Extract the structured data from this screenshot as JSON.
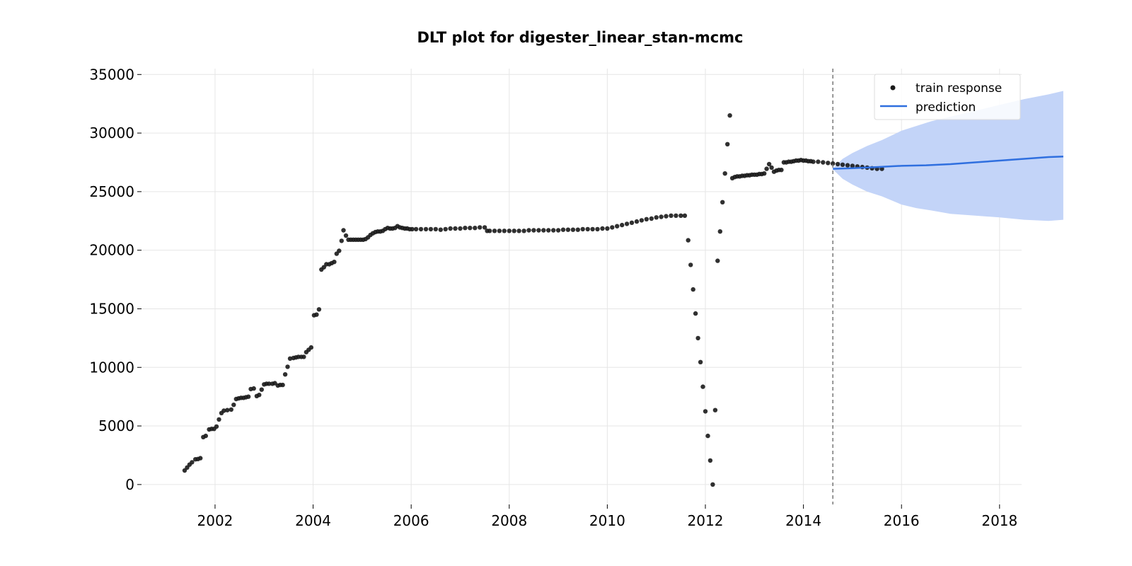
{
  "chart_data": {
    "type": "scatter",
    "title": "DLT plot for digester_linear_stan-mcmc",
    "xlabel": "",
    "ylabel": "",
    "xlim": [
      2000.5,
      2018.45
    ],
    "ylim": [
      -1700,
      35500
    ],
    "x_ticks": [
      2002,
      2004,
      2006,
      2008,
      2010,
      2012,
      2014,
      2016,
      2018
    ],
    "x_tick_labels": [
      "2002",
      "2004",
      "2006",
      "2008",
      "2010",
      "2012",
      "2014",
      "2016",
      "2018"
    ],
    "y_ticks": [
      0,
      5000,
      10000,
      15000,
      20000,
      25000,
      30000,
      35000
    ],
    "y_tick_labels": [
      "0",
      "5000",
      "10000",
      "15000",
      "20000",
      "25000",
      "30000",
      "35000"
    ],
    "grid": true,
    "legend_position": "top-right",
    "split_x": 2014.6,
    "colors": {
      "train": "#1a1a1a",
      "prediction": "#2f6fdf",
      "band": "#c3d4f8",
      "split": "#777777"
    },
    "series": [
      {
        "name": "train response",
        "kind": "scatter",
        "points": [
          [
            2001.38,
            1200
          ],
          [
            2001.43,
            1450
          ],
          [
            2001.48,
            1700
          ],
          [
            2001.53,
            1900
          ],
          [
            2001.6,
            2150
          ],
          [
            2001.65,
            2180
          ],
          [
            2001.7,
            2250
          ],
          [
            2001.76,
            4050
          ],
          [
            2001.81,
            4150
          ],
          [
            2001.88,
            4700
          ],
          [
            2001.93,
            4750
          ],
          [
            2001.98,
            4750
          ],
          [
            2002.03,
            4950
          ],
          [
            2002.08,
            5550
          ],
          [
            2002.13,
            6100
          ],
          [
            2002.18,
            6300
          ],
          [
            2002.25,
            6350
          ],
          [
            2002.33,
            6400
          ],
          [
            2002.38,
            6800
          ],
          [
            2002.43,
            7300
          ],
          [
            2002.48,
            7350
          ],
          [
            2002.53,
            7400
          ],
          [
            2002.58,
            7400
          ],
          [
            2002.63,
            7450
          ],
          [
            2002.68,
            7500
          ],
          [
            2002.73,
            8150
          ],
          [
            2002.79,
            8200
          ],
          [
            2002.85,
            7550
          ],
          [
            2002.9,
            7650
          ],
          [
            2002.95,
            8100
          ],
          [
            2003.0,
            8550
          ],
          [
            2003.05,
            8600
          ],
          [
            2003.1,
            8600
          ],
          [
            2003.17,
            8600
          ],
          [
            2003.22,
            8650
          ],
          [
            2003.28,
            8450
          ],
          [
            2003.33,
            8500
          ],
          [
            2003.38,
            8500
          ],
          [
            2003.43,
            9400
          ],
          [
            2003.48,
            10050
          ],
          [
            2003.53,
            10750
          ],
          [
            2003.6,
            10800
          ],
          [
            2003.65,
            10850
          ],
          [
            2003.7,
            10900
          ],
          [
            2003.76,
            10900
          ],
          [
            2003.81,
            10900
          ],
          [
            2003.86,
            11300
          ],
          [
            2003.91,
            11500
          ],
          [
            2003.96,
            11700
          ],
          [
            2004.02,
            14450
          ],
          [
            2004.07,
            14500
          ],
          [
            2004.12,
            14950
          ],
          [
            2004.17,
            18350
          ],
          [
            2004.22,
            18550
          ],
          [
            2004.27,
            18800
          ],
          [
            2004.33,
            18800
          ],
          [
            2004.38,
            18900
          ],
          [
            2004.43,
            19000
          ],
          [
            2004.48,
            19700
          ],
          [
            2004.53,
            19950
          ],
          [
            2004.58,
            20800
          ],
          [
            2004.62,
            21700
          ],
          [
            2004.67,
            21250
          ],
          [
            2004.72,
            20900
          ],
          [
            2004.77,
            20900
          ],
          [
            2004.82,
            20900
          ],
          [
            2004.87,
            20900
          ],
          [
            2004.92,
            20900
          ],
          [
            2004.97,
            20900
          ],
          [
            2005.02,
            20900
          ],
          [
            2005.07,
            20950
          ],
          [
            2005.12,
            21100
          ],
          [
            2005.17,
            21300
          ],
          [
            2005.22,
            21450
          ],
          [
            2005.27,
            21550
          ],
          [
            2005.32,
            21600
          ],
          [
            2005.37,
            21600
          ],
          [
            2005.42,
            21650
          ],
          [
            2005.47,
            21800
          ],
          [
            2005.52,
            21900
          ],
          [
            2005.57,
            21850
          ],
          [
            2005.62,
            21850
          ],
          [
            2005.67,
            21900
          ],
          [
            2005.72,
            22050
          ],
          [
            2005.77,
            21950
          ],
          [
            2005.82,
            21900
          ],
          [
            2005.87,
            21850
          ],
          [
            2005.92,
            21850
          ],
          [
            2005.97,
            21800
          ],
          [
            2006.02,
            21800
          ],
          [
            2006.1,
            21800
          ],
          [
            2006.2,
            21800
          ],
          [
            2006.3,
            21800
          ],
          [
            2006.4,
            21800
          ],
          [
            2006.5,
            21800
          ],
          [
            2006.6,
            21750
          ],
          [
            2006.7,
            21800
          ],
          [
            2006.8,
            21850
          ],
          [
            2006.9,
            21850
          ],
          [
            2007.0,
            21850
          ],
          [
            2007.1,
            21900
          ],
          [
            2007.2,
            21900
          ],
          [
            2007.3,
            21900
          ],
          [
            2007.4,
            21950
          ],
          [
            2007.5,
            21950
          ],
          [
            2007.55,
            21650
          ],
          [
            2007.6,
            21650
          ],
          [
            2007.7,
            21650
          ],
          [
            2007.8,
            21650
          ],
          [
            2007.9,
            21650
          ],
          [
            2008.0,
            21650
          ],
          [
            2008.1,
            21650
          ],
          [
            2008.2,
            21650
          ],
          [
            2008.3,
            21650
          ],
          [
            2008.4,
            21700
          ],
          [
            2008.5,
            21700
          ],
          [
            2008.6,
            21700
          ],
          [
            2008.7,
            21700
          ],
          [
            2008.8,
            21700
          ],
          [
            2008.9,
            21700
          ],
          [
            2009.0,
            21700
          ],
          [
            2009.1,
            21750
          ],
          [
            2009.2,
            21750
          ],
          [
            2009.3,
            21750
          ],
          [
            2009.4,
            21750
          ],
          [
            2009.5,
            21800
          ],
          [
            2009.6,
            21800
          ],
          [
            2009.7,
            21800
          ],
          [
            2009.8,
            21800
          ],
          [
            2009.9,
            21850
          ],
          [
            2010.0,
            21850
          ],
          [
            2010.1,
            21950
          ],
          [
            2010.2,
            22050
          ],
          [
            2010.3,
            22150
          ],
          [
            2010.4,
            22250
          ],
          [
            2010.5,
            22350
          ],
          [
            2010.6,
            22450
          ],
          [
            2010.7,
            22550
          ],
          [
            2010.8,
            22650
          ],
          [
            2010.9,
            22700
          ],
          [
            2011.0,
            22800
          ],
          [
            2011.1,
            22850
          ],
          [
            2011.2,
            22900
          ],
          [
            2011.3,
            22950
          ],
          [
            2011.4,
            22950
          ],
          [
            2011.5,
            22950
          ],
          [
            2011.58,
            22950
          ],
          [
            2011.65,
            20850
          ],
          [
            2011.7,
            18750
          ],
          [
            2011.75,
            16650
          ],
          [
            2011.8,
            14600
          ],
          [
            2011.85,
            12500
          ],
          [
            2011.9,
            10450
          ],
          [
            2011.95,
            8350
          ],
          [
            2012.0,
            6250
          ],
          [
            2012.05,
            4150
          ],
          [
            2012.1,
            2050
          ],
          [
            2012.15,
            0
          ],
          [
            2012.2,
            6350
          ],
          [
            2012.25,
            19100
          ],
          [
            2012.3,
            21600
          ],
          [
            2012.35,
            24100
          ],
          [
            2012.4,
            26550
          ],
          [
            2012.45,
            29050
          ],
          [
            2012.5,
            31500
          ],
          [
            2012.55,
            26150
          ],
          [
            2012.6,
            26250
          ],
          [
            2012.65,
            26300
          ],
          [
            2012.7,
            26300
          ],
          [
            2012.75,
            26350
          ],
          [
            2012.8,
            26350
          ],
          [
            2012.85,
            26400
          ],
          [
            2012.9,
            26400
          ],
          [
            2012.95,
            26450
          ],
          [
            2013.0,
            26450
          ],
          [
            2013.05,
            26450
          ],
          [
            2013.1,
            26500
          ],
          [
            2013.15,
            26500
          ],
          [
            2013.2,
            26550
          ],
          [
            2013.25,
            26950
          ],
          [
            2013.3,
            27350
          ],
          [
            2013.35,
            27050
          ],
          [
            2013.4,
            26700
          ],
          [
            2013.45,
            26800
          ],
          [
            2013.5,
            26850
          ],
          [
            2013.55,
            26850
          ],
          [
            2013.6,
            27500
          ],
          [
            2013.65,
            27500
          ],
          [
            2013.7,
            27550
          ],
          [
            2013.75,
            27550
          ],
          [
            2013.8,
            27600
          ],
          [
            2013.85,
            27650
          ],
          [
            2013.9,
            27650
          ],
          [
            2013.95,
            27700
          ],
          [
            2014.0,
            27650
          ],
          [
            2014.05,
            27650
          ],
          [
            2014.1,
            27600
          ],
          [
            2014.15,
            27600
          ],
          [
            2014.2,
            27550
          ],
          [
            2014.3,
            27550
          ],
          [
            2014.4,
            27500
          ],
          [
            2014.5,
            27450
          ],
          [
            2014.6,
            27400
          ],
          [
            2014.7,
            27350
          ],
          [
            2014.8,
            27300
          ],
          [
            2014.9,
            27250
          ],
          [
            2015.0,
            27200
          ],
          [
            2015.1,
            27150
          ],
          [
            2015.2,
            27100
          ],
          [
            2015.3,
            27050
          ],
          [
            2015.4,
            27000
          ],
          [
            2015.5,
            26950
          ],
          [
            2015.6,
            26950
          ]
        ]
      },
      {
        "name": "prediction",
        "kind": "line",
        "points": [
          [
            2014.6,
            26950
          ],
          [
            2015.0,
            27000
          ],
          [
            2015.5,
            27100
          ],
          [
            2016.0,
            27200
          ],
          [
            2016.5,
            27250
          ],
          [
            2017.0,
            27350
          ],
          [
            2017.5,
            27500
          ],
          [
            2018.0,
            27650
          ],
          [
            2018.5,
            27800
          ],
          [
            2019.0,
            27950
          ],
          [
            2019.3,
            28000
          ]
        ],
        "band_upper": [
          [
            2014.6,
            27000
          ],
          [
            2014.8,
            27800
          ],
          [
            2015.0,
            28300
          ],
          [
            2015.3,
            28900
          ],
          [
            2015.6,
            29400
          ],
          [
            2016.0,
            30200
          ],
          [
            2016.3,
            30600
          ],
          [
            2016.6,
            31000
          ],
          [
            2017.0,
            31400
          ],
          [
            2017.5,
            31900
          ],
          [
            2018.0,
            32400
          ],
          [
            2018.5,
            32900
          ],
          [
            2019.0,
            33300
          ],
          [
            2019.3,
            33600
          ]
        ],
        "band_lower": [
          [
            2014.6,
            26900
          ],
          [
            2014.8,
            26100
          ],
          [
            2015.0,
            25600
          ],
          [
            2015.3,
            25000
          ],
          [
            2015.6,
            24600
          ],
          [
            2016.0,
            23900
          ],
          [
            2016.3,
            23600
          ],
          [
            2016.6,
            23400
          ],
          [
            2017.0,
            23100
          ],
          [
            2017.5,
            22950
          ],
          [
            2018.0,
            22800
          ],
          [
            2018.5,
            22600
          ],
          [
            2019.0,
            22500
          ],
          [
            2019.3,
            22600
          ]
        ]
      }
    ],
    "legend": [
      {
        "label": "train response",
        "marker": "dot"
      },
      {
        "label": "prediction",
        "marker": "line"
      }
    ]
  }
}
